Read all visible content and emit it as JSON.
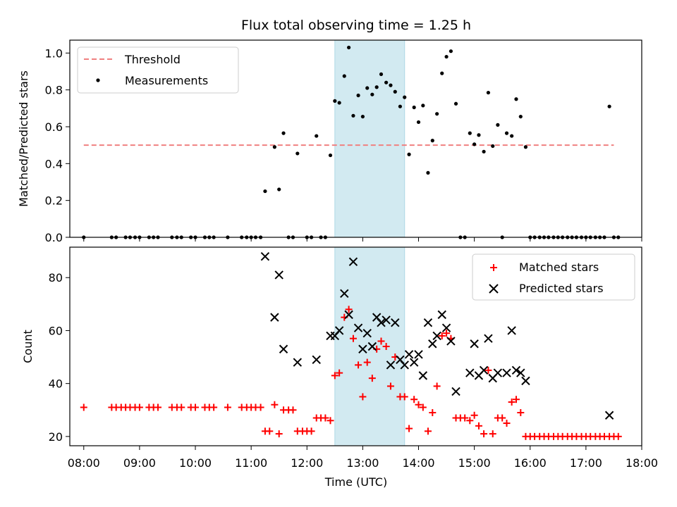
{
  "chart_data": [
    {
      "type": "scatter",
      "title": "Flux total observing time = 1.25 h",
      "xlabel": "",
      "ylabel": "Matched/Predicted stars",
      "xlim": [
        7.75,
        18.0
      ],
      "ylim": [
        0.0,
        1.07
      ],
      "yticks": [
        0.0,
        0.2,
        0.4,
        0.6,
        0.8,
        1.0
      ],
      "yticklabels": [
        "0.0",
        "0.2",
        "0.4",
        "0.6",
        "0.8",
        "1.0"
      ],
      "shaded_x_range": [
        12.5,
        13.75
      ],
      "shade_color": "#add8e6",
      "legend": {
        "position": "upper-left",
        "entries": [
          "Threshold",
          "Measurements"
        ]
      },
      "threshold": {
        "name": "Threshold",
        "x": [
          8.0,
          17.5
        ],
        "y": 0.5,
        "color": "#f08080",
        "style": "dashed"
      },
      "measurements": {
        "name": "Measurements",
        "color": "#000000",
        "points": [
          [
            8.0,
            0.0
          ],
          [
            8.5,
            0.0
          ],
          [
            8.58,
            0.0
          ],
          [
            8.75,
            0.0
          ],
          [
            8.83,
            0.0
          ],
          [
            8.92,
            0.0
          ],
          [
            9.0,
            0.0
          ],
          [
            9.17,
            0.0
          ],
          [
            9.25,
            0.0
          ],
          [
            9.33,
            0.0
          ],
          [
            9.58,
            0.0
          ],
          [
            9.67,
            0.0
          ],
          [
            9.75,
            0.0
          ],
          [
            9.92,
            0.0
          ],
          [
            10.0,
            0.0
          ],
          [
            10.17,
            0.0
          ],
          [
            10.25,
            0.0
          ],
          [
            10.33,
            0.0
          ],
          [
            10.58,
            0.0
          ],
          [
            10.83,
            0.0
          ],
          [
            10.92,
            0.0
          ],
          [
            11.0,
            0.0
          ],
          [
            11.08,
            0.0
          ],
          [
            11.17,
            0.0
          ],
          [
            11.25,
            0.25
          ],
          [
            11.42,
            0.49
          ],
          [
            11.5,
            0.26
          ],
          [
            11.58,
            0.565
          ],
          [
            11.67,
            0.0
          ],
          [
            11.75,
            0.0
          ],
          [
            11.83,
            0.455
          ],
          [
            12.0,
            0.0
          ],
          [
            12.08,
            0.0
          ],
          [
            12.17,
            0.55
          ],
          [
            12.25,
            0.0
          ],
          [
            12.33,
            0.0
          ],
          [
            12.42,
            0.445
          ],
          [
            12.5,
            0.74
          ],
          [
            12.58,
            0.73
          ],
          [
            12.67,
            0.875
          ],
          [
            12.75,
            1.03
          ],
          [
            12.83,
            0.66
          ],
          [
            12.92,
            0.77
          ],
          [
            13.0,
            0.655
          ],
          [
            13.08,
            0.81
          ],
          [
            13.17,
            0.775
          ],
          [
            13.25,
            0.815
          ],
          [
            13.33,
            0.885
          ],
          [
            13.42,
            0.84
          ],
          [
            13.5,
            0.825
          ],
          [
            13.58,
            0.79
          ],
          [
            13.67,
            0.71
          ],
          [
            13.75,
            0.76
          ],
          [
            13.83,
            0.45
          ],
          [
            13.92,
            0.705
          ],
          [
            14.0,
            0.625
          ],
          [
            14.08,
            0.715
          ],
          [
            14.17,
            0.35
          ],
          [
            14.25,
            0.525
          ],
          [
            14.33,
            0.67
          ],
          [
            14.42,
            0.89
          ],
          [
            14.5,
            0.98
          ],
          [
            14.58,
            1.01
          ],
          [
            14.67,
            0.725
          ],
          [
            14.75,
            0.0
          ],
          [
            14.83,
            0.0
          ],
          [
            14.92,
            0.565
          ],
          [
            15.0,
            0.505
          ],
          [
            15.08,
            0.555
          ],
          [
            15.17,
            0.465
          ],
          [
            15.25,
            0.785
          ],
          [
            15.33,
            0.495
          ],
          [
            15.42,
            0.61
          ],
          [
            15.5,
            0.0
          ],
          [
            15.58,
            0.565
          ],
          [
            15.67,
            0.55
          ],
          [
            15.75,
            0.75
          ],
          [
            15.83,
            0.655
          ],
          [
            15.92,
            0.49
          ],
          [
            16.0,
            0.0
          ],
          [
            16.08,
            0.0
          ],
          [
            16.17,
            0.0
          ],
          [
            16.25,
            0.0
          ],
          [
            16.33,
            0.0
          ],
          [
            16.42,
            0.0
          ],
          [
            16.5,
            0.0
          ],
          [
            16.58,
            0.0
          ],
          [
            16.67,
            0.0
          ],
          [
            16.75,
            0.0
          ],
          [
            16.83,
            0.0
          ],
          [
            16.92,
            0.0
          ],
          [
            17.0,
            0.0
          ],
          [
            17.08,
            0.0
          ],
          [
            17.17,
            0.0
          ],
          [
            17.25,
            0.0
          ],
          [
            17.33,
            0.0
          ],
          [
            17.42,
            0.71
          ],
          [
            17.5,
            0.0
          ],
          [
            17.58,
            0.0
          ]
        ]
      }
    },
    {
      "type": "scatter",
      "xlabel": "Time (UTC)",
      "ylabel": "Count",
      "xlim": [
        7.75,
        18.0
      ],
      "ylim": [
        16.5,
        91.5
      ],
      "yticks": [
        20,
        40,
        60,
        80
      ],
      "yticklabels": [
        "20",
        "40",
        "60",
        "80"
      ],
      "xticks": [
        8,
        9,
        10,
        11,
        12,
        13,
        14,
        15,
        16,
        17,
        18
      ],
      "xticklabels": [
        "08:00",
        "09:00",
        "10:00",
        "11:00",
        "12:00",
        "13:00",
        "14:00",
        "15:00",
        "16:00",
        "17:00",
        "18:00"
      ],
      "shaded_x_range": [
        12.5,
        13.75
      ],
      "shade_color": "#add8e6",
      "legend": {
        "position": "upper-right",
        "entries": [
          "Matched stars",
          "Predicted stars"
        ]
      },
      "matched": {
        "name": "Matched stars",
        "color": "#ff0000",
        "marker": "+",
        "points": [
          [
            8.0,
            31
          ],
          [
            8.5,
            31
          ],
          [
            8.58,
            31
          ],
          [
            8.67,
            31
          ],
          [
            8.75,
            31
          ],
          [
            8.83,
            31
          ],
          [
            8.92,
            31
          ],
          [
            9.0,
            31
          ],
          [
            9.17,
            31
          ],
          [
            9.25,
            31
          ],
          [
            9.33,
            31
          ],
          [
            9.58,
            31
          ],
          [
            9.67,
            31
          ],
          [
            9.75,
            31
          ],
          [
            9.92,
            31
          ],
          [
            10.0,
            31
          ],
          [
            10.17,
            31
          ],
          [
            10.25,
            31
          ],
          [
            10.33,
            31
          ],
          [
            10.58,
            31
          ],
          [
            10.83,
            31
          ],
          [
            10.92,
            31
          ],
          [
            11.0,
            31
          ],
          [
            11.08,
            31
          ],
          [
            11.17,
            31
          ],
          [
            11.25,
            22
          ],
          [
            11.33,
            22
          ],
          [
            11.42,
            32
          ],
          [
            11.5,
            21
          ],
          [
            11.58,
            30
          ],
          [
            11.67,
            30
          ],
          [
            11.75,
            30
          ],
          [
            11.83,
            22
          ],
          [
            11.92,
            22
          ],
          [
            12.0,
            22
          ],
          [
            12.08,
            22
          ],
          [
            12.17,
            27
          ],
          [
            12.25,
            27
          ],
          [
            12.33,
            27
          ],
          [
            12.42,
            26
          ],
          [
            12.5,
            43
          ],
          [
            12.58,
            44
          ],
          [
            12.67,
            65
          ],
          [
            12.75,
            68
          ],
          [
            12.83,
            57
          ],
          [
            12.92,
            47
          ],
          [
            13.0,
            35
          ],
          [
            13.08,
            48
          ],
          [
            13.17,
            42
          ],
          [
            13.25,
            53
          ],
          [
            13.33,
            56
          ],
          [
            13.42,
            54
          ],
          [
            13.5,
            39
          ],
          [
            13.58,
            50
          ],
          [
            13.67,
            35
          ],
          [
            13.75,
            35
          ],
          [
            13.83,
            23
          ],
          [
            13.92,
            34
          ],
          [
            14.0,
            32
          ],
          [
            14.08,
            31
          ],
          [
            14.17,
            22
          ],
          [
            14.25,
            29
          ],
          [
            14.33,
            39
          ],
          [
            14.42,
            58
          ],
          [
            14.5,
            59
          ],
          [
            14.58,
            57
          ],
          [
            14.67,
            27
          ],
          [
            14.75,
            27
          ],
          [
            14.83,
            27
          ],
          [
            14.92,
            26
          ],
          [
            15.0,
            28
          ],
          [
            15.08,
            24
          ],
          [
            15.17,
            21
          ],
          [
            15.25,
            45
          ],
          [
            15.33,
            21
          ],
          [
            15.42,
            27
          ],
          [
            15.5,
            27
          ],
          [
            15.58,
            25
          ],
          [
            15.67,
            33
          ],
          [
            15.75,
            34
          ],
          [
            15.83,
            29
          ],
          [
            15.92,
            20
          ],
          [
            16.0,
            20
          ],
          [
            16.08,
            20
          ],
          [
            16.17,
            20
          ],
          [
            16.25,
            20
          ],
          [
            16.33,
            20
          ],
          [
            16.42,
            20
          ],
          [
            16.5,
            20
          ],
          [
            16.58,
            20
          ],
          [
            16.67,
            20
          ],
          [
            16.75,
            20
          ],
          [
            16.83,
            20
          ],
          [
            16.92,
            20
          ],
          [
            17.0,
            20
          ],
          [
            17.08,
            20
          ],
          [
            17.17,
            20
          ],
          [
            17.25,
            20
          ],
          [
            17.33,
            20
          ],
          [
            17.42,
            20
          ],
          [
            17.5,
            20
          ],
          [
            17.58,
            20
          ]
        ]
      },
      "predicted": {
        "name": "Predicted stars",
        "color": "#000000",
        "marker": "x",
        "points": [
          [
            11.25,
            88
          ],
          [
            11.42,
            65
          ],
          [
            11.5,
            81
          ],
          [
            11.58,
            53
          ],
          [
            11.83,
            48
          ],
          [
            12.17,
            49
          ],
          [
            12.42,
            58
          ],
          [
            12.5,
            58
          ],
          [
            12.58,
            60
          ],
          [
            12.67,
            74
          ],
          [
            12.75,
            66
          ],
          [
            12.83,
            86
          ],
          [
            12.92,
            61
          ],
          [
            13.0,
            53
          ],
          [
            13.08,
            59
          ],
          [
            13.17,
            54
          ],
          [
            13.25,
            65
          ],
          [
            13.33,
            63
          ],
          [
            13.42,
            64
          ],
          [
            13.5,
            47
          ],
          [
            13.58,
            63
          ],
          [
            13.67,
            49
          ],
          [
            13.75,
            47
          ],
          [
            13.83,
            51
          ],
          [
            13.92,
            48
          ],
          [
            14.0,
            51
          ],
          [
            14.08,
            43
          ],
          [
            14.17,
            63
          ],
          [
            14.25,
            55
          ],
          [
            14.33,
            58
          ],
          [
            14.42,
            66
          ],
          [
            14.5,
            61
          ],
          [
            14.58,
            56
          ],
          [
            14.67,
            37
          ],
          [
            14.92,
            44
          ],
          [
            15.0,
            55
          ],
          [
            15.08,
            43
          ],
          [
            15.17,
            45
          ],
          [
            15.25,
            57
          ],
          [
            15.33,
            42
          ],
          [
            15.42,
            44
          ],
          [
            15.58,
            44
          ],
          [
            15.67,
            60
          ],
          [
            15.75,
            45
          ],
          [
            15.83,
            44
          ],
          [
            15.92,
            41
          ],
          [
            17.42,
            28
          ]
        ]
      }
    }
  ]
}
